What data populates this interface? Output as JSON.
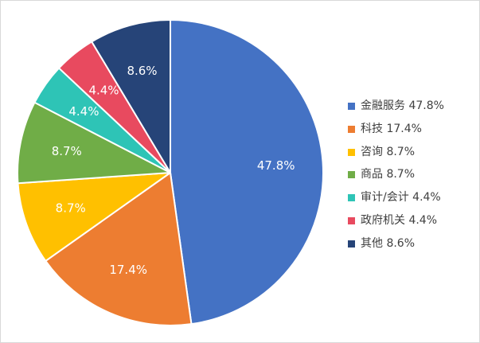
{
  "chart_data": {
    "type": "pie",
    "title": "",
    "start_angle_deg": 0,
    "direction": "clockwise",
    "legend_position": "right",
    "slices": [
      {
        "label": "金融服务",
        "value": 47.8,
        "value_label": "47.8%",
        "legend_text": "金融服务 47.8%",
        "color": "#4472C4",
        "label_color": "#FFFFFF"
      },
      {
        "label": "科技",
        "value": 17.4,
        "value_label": "17.4%",
        "legend_text": "科技 17.4%",
        "color": "#ED7D31",
        "label_color": "#FFFFFF"
      },
      {
        "label": "咨询",
        "value": 8.7,
        "value_label": "8.7%",
        "legend_text": "咨询 8.7%",
        "color": "#FFC000",
        "label_color": "#FFFFFF"
      },
      {
        "label": "商品",
        "value": 8.7,
        "value_label": "8.7%",
        "legend_text": "商品 8.7%",
        "color": "#70AD47",
        "label_color": "#FFFFFF"
      },
      {
        "label": "审计/会计",
        "value": 4.4,
        "value_label": "4.4%",
        "legend_text": "审计/会计 4.4%",
        "color": "#2EC4B6",
        "label_color": "#FFFFFF"
      },
      {
        "label": "政府机关",
        "value": 4.4,
        "value_label": "4.4%",
        "legend_text": "政府机关 4.4%",
        "color": "#E84A5F",
        "label_color": "#FFFFFF"
      },
      {
        "label": "其他",
        "value": 8.6,
        "value_label": "8.6%",
        "legend_text": "其他 8.6%",
        "color": "#264478",
        "label_color": "#FFFFFF"
      }
    ]
  }
}
